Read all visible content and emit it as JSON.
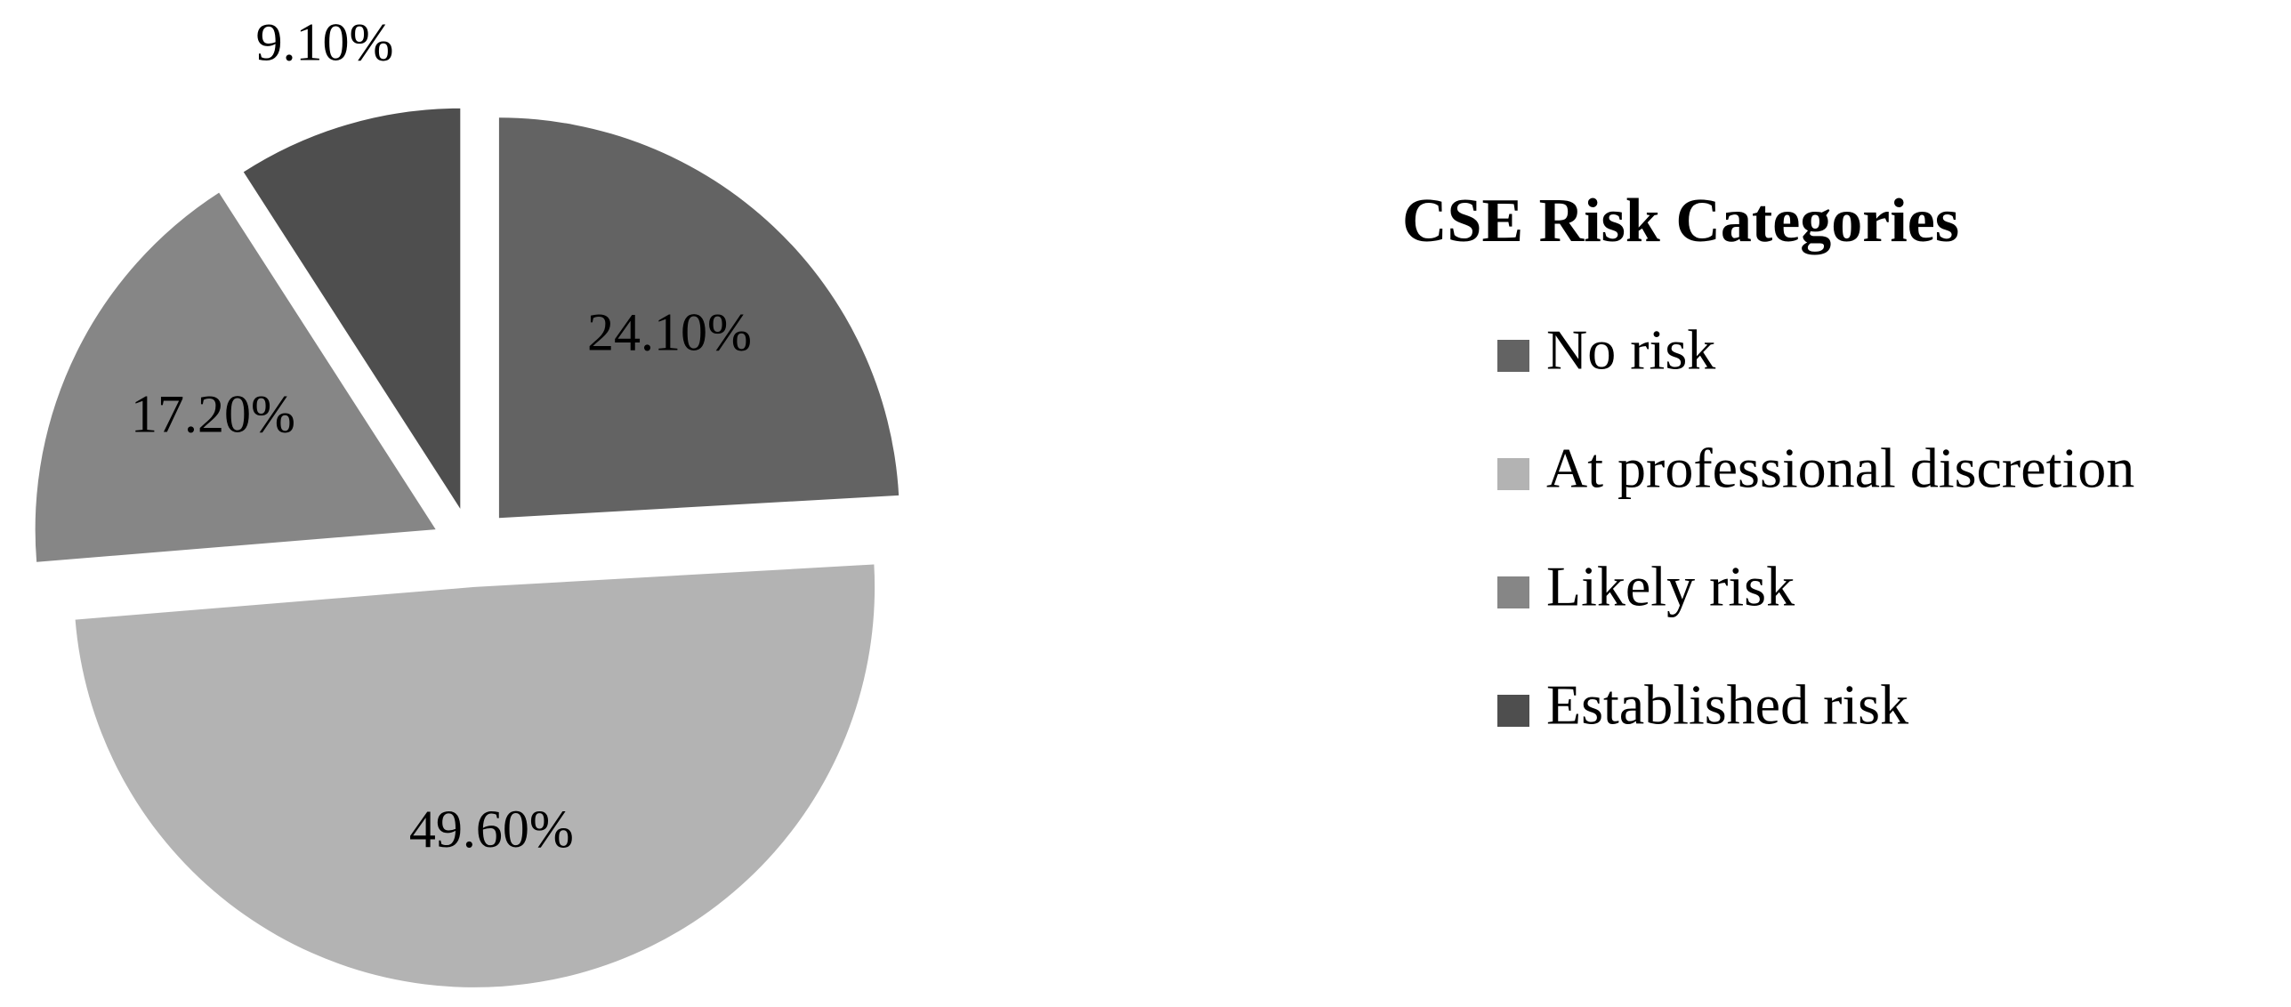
{
  "chart_data": {
    "type": "pie",
    "legend_title": "CSE Risk Categories",
    "categories": [
      "No risk",
      "At professional discretion",
      "Likely risk",
      "Established risk"
    ],
    "values": [
      24.1,
      49.6,
      17.2,
      9.1
    ],
    "value_labels": [
      "24.10%",
      "49.60%",
      "17.20%",
      "9.10%"
    ],
    "colors": [
      "#636363",
      "#b3b3b3",
      "#868686",
      "#4e4e4e"
    ],
    "legend": "right"
  }
}
